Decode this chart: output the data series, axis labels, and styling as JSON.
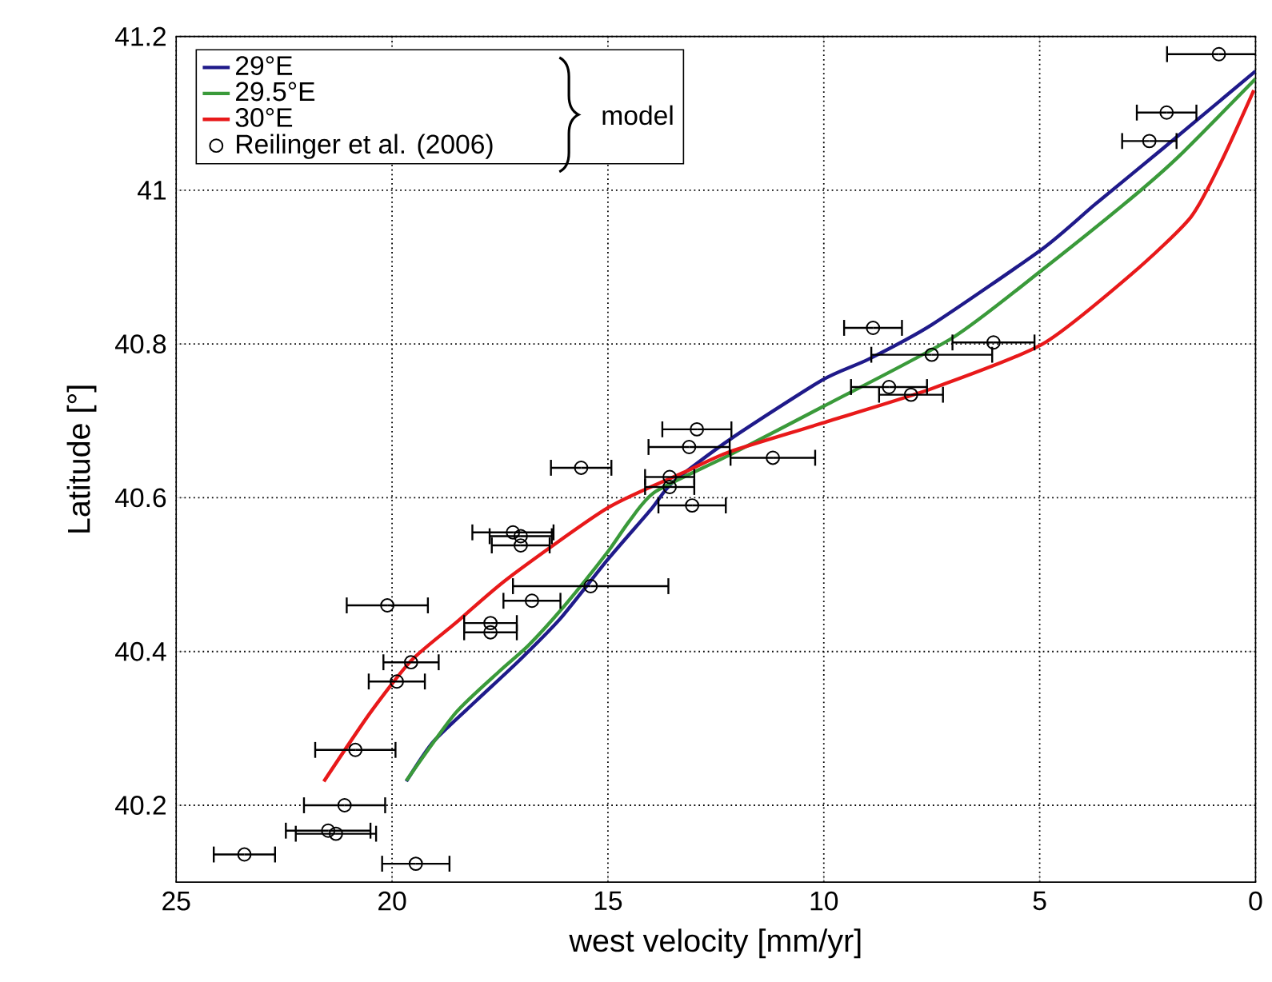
{
  "chart_data": {
    "type": "line",
    "xlabel": "west velocity [mm/yr]",
    "ylabel": "Latitude [°]",
    "xlim": [
      25,
      0
    ],
    "ylim": [
      40.1,
      41.2
    ],
    "xticks": [
      25,
      20,
      15,
      10,
      5,
      0
    ],
    "yticks": [
      40.2,
      40.4,
      40.6,
      40.8,
      41,
      41.2
    ],
    "grid": true,
    "legend": "top left",
    "annotations": [
      "model"
    ],
    "series": [
      {
        "name": "29°E",
        "color": "#1f1a8a",
        "line_style": "solid",
        "marker": "none",
        "x": [
          19.67,
          19.04,
          18.05,
          17.06,
          16.1,
          15.0,
          14.0,
          13.5,
          12.17,
          10.04,
          8.97,
          7.5,
          4.93,
          3.71,
          2.13,
          0
        ],
        "values": [
          40.231,
          40.283,
          40.336,
          40.388,
          40.443,
          40.52,
          40.585,
          40.62,
          40.676,
          40.753,
          40.78,
          40.825,
          40.924,
          40.982,
          41.055,
          41.155
        ]
      },
      {
        "name": "29.5°E",
        "color": "#3a9a3a",
        "line_style": "solid",
        "marker": "none",
        "x": [
          19.67,
          18.53,
          17.5,
          16.84,
          16.0,
          15.0,
          14.5,
          13.9,
          12.17,
          10.04,
          7.02,
          4.93,
          2.87,
          1.76,
          0
        ],
        "values": [
          40.232,
          40.32,
          40.375,
          40.408,
          40.46,
          40.53,
          40.57,
          40.608,
          40.656,
          40.718,
          40.808,
          40.897,
          40.99,
          41.045,
          41.145
        ]
      },
      {
        "name": "30°E",
        "color": "#e8191a",
        "line_style": "solid",
        "marker": "none",
        "x": [
          21.58,
          20.51,
          19.56,
          18.53,
          17.32,
          15.0,
          13.16,
          12.17,
          10.04,
          7.5,
          4.93,
          2.87,
          1.5,
          0.77,
          0.04
        ],
        "values": [
          40.231,
          40.32,
          40.388,
          40.437,
          40.495,
          40.587,
          40.635,
          40.66,
          40.697,
          40.742,
          40.8,
          40.891,
          40.965,
          41.04,
          41.13
        ]
      },
      {
        "name": "Reilinger et al. (2006)",
        "type": "scatter",
        "color": "#000000",
        "marker": "circle",
        "x": [
          12.94,
          13.12,
          15.62,
          13.57,
          13.57,
          13.05,
          17.2,
          17.02,
          17.02,
          15.4,
          16.76,
          20.11,
          17.72,
          17.72,
          19.56,
          19.89,
          20.85,
          21.1,
          21.48,
          21.3,
          23.42,
          19.45,
          8.86,
          6.07,
          7.5,
          8.49,
          7.98,
          11.18,
          0.85,
          2.06,
          2.46
        ],
        "values": [
          40.689,
          40.666,
          40.639,
          40.627,
          40.614,
          40.59,
          40.555,
          40.55,
          40.538,
          40.485,
          40.466,
          40.46,
          40.437,
          40.425,
          40.386,
          40.361,
          40.272,
          40.2,
          40.167,
          40.163,
          40.136,
          40.124,
          40.821,
          40.802,
          40.786,
          40.744,
          40.734,
          40.652,
          41.177,
          41.101,
          41.064
        ],
        "xerrors": [
          0.8,
          0.94,
          0.7,
          0.57,
          0.57,
          0.78,
          0.94,
          0.72,
          0.67,
          1.8,
          0.66,
          0.94,
          0.61,
          0.61,
          0.64,
          0.65,
          0.93,
          0.94,
          0.98,
          0.93,
          0.71,
          0.78,
          0.67,
          0.95,
          1.4,
          0.88,
          0.74,
          0.98,
          1.2,
          0.69,
          0.63
        ]
      }
    ]
  }
}
